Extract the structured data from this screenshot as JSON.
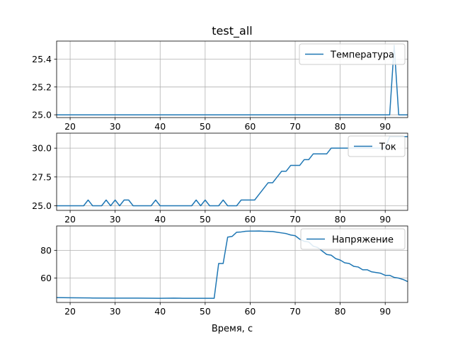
{
  "chart_data": {
    "type": "line",
    "title": "test_all",
    "xlabel": "Время, с",
    "xlim": [
      17,
      95
    ],
    "xticks": [
      20,
      30,
      40,
      50,
      60,
      70,
      80,
      90
    ],
    "grid": true,
    "line_color": "#1f77b4",
    "panels": [
      {
        "id": "temperature",
        "series_name": "Температура",
        "legend_loc": "upper-right",
        "ylim": [
          24.98,
          25.53
        ],
        "yticks": [
          25.0,
          25.2,
          25.4
        ],
        "ytick_labels": [
          "25.0",
          "25.2",
          "25.4"
        ],
        "x": [
          17,
          90,
          91,
          92,
          93,
          94,
          95
        ],
        "y": [
          25.0,
          25.0,
          25.0,
          25.5,
          25.0,
          25.0,
          25.0
        ]
      },
      {
        "id": "current",
        "series_name": "Ток",
        "legend_loc": "upper-right",
        "ylim": [
          24.6,
          31.3
        ],
        "yticks": [
          25.0,
          27.5,
          30.0
        ],
        "ytick_labels": [
          "25.0",
          "27.5",
          "30.0"
        ],
        "x": [
          17,
          18,
          19,
          20,
          21,
          22,
          23,
          24,
          25,
          26,
          27,
          28,
          29,
          30,
          31,
          32,
          33,
          34,
          35,
          36,
          37,
          38,
          39,
          40,
          41,
          42,
          43,
          44,
          45,
          46,
          47,
          48,
          49,
          50,
          51,
          52,
          53,
          54,
          55,
          56,
          57,
          58,
          59,
          60,
          61,
          62,
          63,
          64,
          65,
          66,
          67,
          68,
          69,
          70,
          71,
          72,
          73,
          74,
          75,
          76,
          77,
          78,
          79,
          80,
          81,
          82,
          83,
          84,
          85,
          86,
          87,
          88,
          89,
          90,
          91,
          92,
          93,
          94,
          95
        ],
        "y": [
          25.0,
          25.0,
          25.0,
          25.0,
          25.0,
          25.0,
          25.0,
          25.5,
          25.0,
          25.0,
          25.0,
          25.5,
          25.0,
          25.5,
          25.0,
          25.5,
          25.5,
          25.0,
          25.0,
          25.0,
          25.0,
          25.0,
          25.5,
          25.0,
          25.0,
          25.0,
          25.0,
          25.0,
          25.0,
          25.0,
          25.0,
          25.5,
          25.0,
          25.5,
          25.0,
          25.0,
          25.0,
          25.5,
          25.0,
          25.0,
          25.0,
          25.5,
          25.5,
          25.5,
          25.5,
          26.0,
          26.5,
          27.0,
          27.0,
          27.5,
          28.0,
          28.0,
          28.5,
          28.5,
          28.5,
          29.0,
          29.0,
          29.5,
          29.5,
          29.5,
          29.5,
          30.0,
          30.0,
          30.0,
          30.0,
          30.0,
          30.0,
          30.0,
          30.0,
          30.0,
          30.0,
          30.0,
          30.0,
          30.0,
          31.0,
          31.0,
          31.0,
          31.0,
          31.0
        ]
      },
      {
        "id": "voltage",
        "series_name": "Напряжение",
        "legend_loc": "upper-right",
        "ylim": [
          42.5,
          97.5
        ],
        "yticks": [
          60,
          80
        ],
        "ytick_labels": [
          "60",
          "80"
        ],
        "x": [
          17,
          20,
          25,
          30,
          35,
          40,
          43,
          45,
          50,
          51,
          52,
          53,
          54,
          55,
          56,
          57,
          58,
          59,
          60,
          61,
          62,
          63,
          64,
          65,
          66,
          67,
          68,
          69,
          70,
          71,
          72,
          73,
          74,
          75,
          76,
          77,
          78,
          79,
          80,
          81,
          82,
          83,
          84,
          85,
          86,
          87,
          88,
          89,
          90,
          91,
          92,
          93,
          94,
          95
        ],
        "y": [
          46.0,
          45.9,
          45.7,
          45.6,
          45.6,
          45.5,
          45.6,
          45.5,
          45.5,
          45.5,
          45.5,
          70.5,
          70.5,
          89.5,
          90.0,
          93.0,
          93.2,
          93.7,
          93.8,
          93.8,
          93.9,
          93.7,
          93.6,
          93.5,
          93.0,
          92.5,
          92.0,
          91.0,
          90.5,
          88.0,
          86.5,
          86.0,
          83.0,
          82.0,
          79.5,
          77.0,
          76.5,
          74.0,
          73.0,
          71.0,
          70.5,
          68.5,
          68.0,
          66.0,
          66.0,
          64.5,
          64.0,
          63.5,
          62.0,
          62.0,
          60.5,
          60.0,
          59.0,
          57.5
        ]
      }
    ]
  }
}
